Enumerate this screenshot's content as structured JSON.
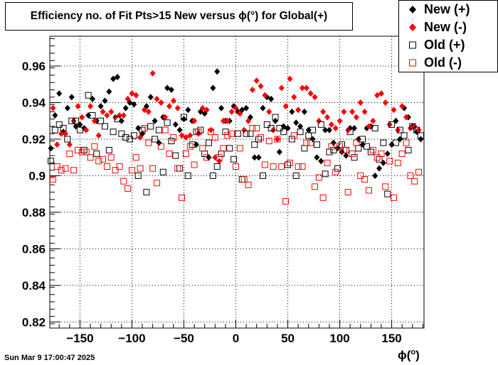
{
  "title": {
    "text": "Efficiency no. of Fit Pts>15 New versus ϕ(°) for Global(+)"
  },
  "timestamp": "Sun Mar  9 17:00:47 2025",
  "xaxis_title": {
    "phi": "ϕ(",
    "degree": "o",
    "close": ")"
  },
  "legend": [
    {
      "label": "New (+)",
      "color": "#000000",
      "marker": "filled-diamond"
    },
    {
      "label": "New (-)",
      "color": "#ff0000",
      "marker": "filled-diamond"
    },
    {
      "label": "Old (+)",
      "color": "#000000",
      "marker": "open-square"
    },
    {
      "label": "Old (-)",
      "color": "#ff0000",
      "marker": "open-square"
    }
  ],
  "chart_data": {
    "type": "scatter",
    "title": "Efficiency no. of Fit Pts>15 New versus ϕ(°) for Global(+)",
    "xlabel": "ϕ(°)",
    "ylabel": "",
    "xlim": [
      -180,
      180
    ],
    "ylim": [
      0.815,
      0.97
    ],
    "grid": true,
    "legend_position": "top-right",
    "xticks": [
      -150,
      -100,
      -50,
      0,
      50,
      100,
      150
    ],
    "yticks": [
      0.82,
      0.84,
      0.86,
      0.88,
      0.9,
      0.92,
      0.94,
      0.96
    ],
    "series": [
      {
        "name": "New (+)",
        "color": "#000000",
        "marker": "filled-diamond",
        "x": [
          -178,
          -174,
          -170,
          -166,
          -162,
          -158,
          -154,
          -150,
          -146,
          -142,
          -138,
          -134,
          -130,
          -126,
          -122,
          -118,
          -114,
          -110,
          -106,
          -102,
          -98,
          -94,
          -90,
          -86,
          -82,
          -78,
          -74,
          -70,
          -66,
          -62,
          -58,
          -54,
          -50,
          -46,
          -42,
          -38,
          -34,
          -30,
          -26,
          -22,
          -18,
          -14,
          -10,
          -6,
          -2,
          2,
          6,
          10,
          14,
          18,
          22,
          26,
          30,
          34,
          38,
          42,
          46,
          50,
          54,
          58,
          62,
          66,
          70,
          74,
          78,
          82,
          86,
          90,
          94,
          98,
          102,
          106,
          110,
          114,
          118,
          122,
          126,
          130,
          134,
          138,
          142,
          146,
          150,
          154,
          158,
          162,
          166,
          170,
          174,
          178
        ],
        "y": [
          0.915,
          0.933,
          0.945,
          0.924,
          0.937,
          0.943,
          0.927,
          0.928,
          0.926,
          0.933,
          0.942,
          0.93,
          0.938,
          0.941,
          0.946,
          0.953,
          0.954,
          0.93,
          0.937,
          0.94,
          0.939,
          0.926,
          0.923,
          0.938,
          0.943,
          0.93,
          0.918,
          0.932,
          0.948,
          0.947,
          0.928,
          0.925,
          0.931,
          0.936,
          0.93,
          0.917,
          0.935,
          0.934,
          0.91,
          0.948,
          0.957,
          0.937,
          0.93,
          0.93,
          0.938,
          0.935,
          0.936,
          0.937,
          0.932,
          0.91,
          0.91,
          0.937,
          0.943,
          0.942,
          0.93,
          0.913,
          0.927,
          0.926,
          0.935,
          0.929,
          0.927,
          0.935,
          0.925,
          0.92,
          0.91,
          0.908,
          0.925,
          0.925,
          0.918,
          0.915,
          0.913,
          0.911,
          0.926,
          0.926,
          0.92,
          0.917,
          0.926,
          0.927,
          0.9,
          0.904,
          0.907,
          0.912,
          0.917,
          0.93,
          0.92,
          0.937,
          0.932,
          0.927,
          0.924,
          0.92
        ]
      },
      {
        "name": "New (-)",
        "color": "#ff0000",
        "marker": "filled-diamond",
        "x": [
          -176,
          -172,
          -168,
          -164,
          -160,
          -156,
          -152,
          -148,
          -144,
          -140,
          -136,
          -132,
          -128,
          -124,
          -120,
          -116,
          -112,
          -108,
          -104,
          -100,
          -96,
          -92,
          -88,
          -84,
          -80,
          -76,
          -72,
          -68,
          -64,
          -60,
          -56,
          -52,
          -48,
          -44,
          -40,
          -36,
          -32,
          -28,
          -24,
          -20,
          -16,
          -12,
          -8,
          -4,
          0,
          4,
          8,
          12,
          16,
          20,
          24,
          28,
          32,
          36,
          40,
          44,
          48,
          52,
          56,
          60,
          64,
          68,
          72,
          76,
          80,
          84,
          88,
          92,
          96,
          100,
          104,
          108,
          112,
          116,
          120,
          124,
          128,
          132,
          136,
          140,
          144,
          148,
          152,
          156,
          160,
          164,
          168,
          172,
          176
        ],
        "y": [
          0.937,
          0.917,
          0.923,
          0.923,
          0.917,
          0.93,
          0.938,
          0.932,
          0.925,
          0.938,
          0.93,
          0.922,
          0.935,
          0.933,
          0.935,
          0.932,
          0.933,
          0.933,
          0.942,
          0.945,
          0.944,
          0.921,
          0.936,
          0.935,
          0.956,
          0.942,
          0.94,
          0.932,
          0.938,
          0.941,
          0.937,
          0.922,
          0.921,
          0.922,
          0.93,
          0.923,
          0.937,
          0.936,
          0.925,
          0.91,
          0.908,
          0.93,
          0.93,
          0.935,
          0.937,
          0.934,
          0.925,
          0.93,
          0.947,
          0.952,
          0.949,
          0.944,
          0.935,
          0.925,
          0.92,
          0.948,
          0.938,
          0.953,
          0.943,
          0.936,
          0.948,
          0.948,
          0.945,
          0.943,
          0.93,
          0.935,
          0.932,
          0.928,
          0.926,
          0.93,
          0.935,
          0.925,
          0.935,
          0.932,
          0.94,
          0.935,
          0.927,
          0.93,
          0.944,
          0.945,
          0.94,
          0.928,
          0.936,
          0.925,
          0.938,
          0.932,
          0.926,
          0.927,
          0.925
        ]
      },
      {
        "name": "Old (+)",
        "color": "#000000",
        "marker": "open-square",
        "x": [
          -178,
          -174,
          -170,
          -166,
          -162,
          -158,
          -154,
          -150,
          -146,
          -142,
          -138,
          -134,
          -130,
          -126,
          -122,
          -118,
          -114,
          -110,
          -106,
          -102,
          -98,
          -94,
          -90,
          -86,
          -82,
          -78,
          -74,
          -70,
          -66,
          -62,
          -58,
          -54,
          -50,
          -46,
          -42,
          -38,
          -34,
          -30,
          -26,
          -22,
          -18,
          -14,
          -10,
          -6,
          -2,
          2,
          6,
          10,
          14,
          18,
          22,
          26,
          30,
          34,
          38,
          42,
          46,
          50,
          54,
          58,
          62,
          66,
          70,
          74,
          78,
          82,
          86,
          90,
          94,
          98,
          102,
          106,
          110,
          114,
          118,
          122,
          126,
          130,
          134,
          138,
          142,
          146,
          150,
          154,
          158,
          162,
          166,
          170,
          174,
          178
        ],
        "y": [
          0.908,
          0.925,
          0.928,
          0.926,
          0.92,
          0.93,
          0.93,
          0.925,
          0.914,
          0.944,
          0.933,
          0.912,
          0.93,
          0.927,
          0.914,
          0.924,
          0.931,
          0.923,
          0.921,
          0.92,
          0.922,
          0.9,
          0.925,
          0.891,
          0.927,
          0.92,
          0.925,
          0.902,
          0.929,
          0.919,
          0.911,
          0.904,
          0.932,
          0.9,
          0.917,
          0.924,
          0.925,
          0.912,
          0.918,
          0.9,
          0.905,
          0.912,
          0.924,
          0.915,
          0.909,
          0.923,
          0.898,
          0.923,
          0.923,
          0.917,
          0.92,
          0.9,
          0.928,
          0.926,
          0.932,
          0.926,
          0.924,
          0.906,
          0.92,
          0.9,
          0.924,
          0.915,
          0.922,
          0.925,
          0.917,
          0.928,
          0.901,
          0.913,
          0.914,
          0.904,
          0.917,
          0.914,
          0.924,
          0.91,
          0.915,
          0.92,
          0.916,
          0.913,
          0.926,
          0.909,
          0.918,
          0.89,
          0.928,
          0.918,
          0.925,
          0.922,
          0.914,
          0.927,
          0.925,
          0.922
        ]
      },
      {
        "name": "Old (-)",
        "color": "#ff0000",
        "marker": "open-square",
        "x": [
          -176,
          -172,
          -168,
          -164,
          -160,
          -156,
          -152,
          -148,
          -144,
          -140,
          -136,
          -132,
          -128,
          -124,
          -120,
          -116,
          -112,
          -108,
          -104,
          -100,
          -96,
          -92,
          -88,
          -84,
          -80,
          -76,
          -72,
          -68,
          -64,
          -60,
          -56,
          -52,
          -48,
          -44,
          -40,
          -36,
          -32,
          -28,
          -24,
          -20,
          -16,
          -12,
          -8,
          -4,
          0,
          4,
          8,
          12,
          16,
          20,
          24,
          28,
          32,
          36,
          40,
          44,
          48,
          52,
          56,
          60,
          64,
          68,
          72,
          76,
          80,
          84,
          88,
          92,
          96,
          100,
          104,
          108,
          112,
          116,
          120,
          124,
          128,
          132,
          136,
          140,
          144,
          148,
          152,
          156,
          160,
          164,
          168,
          172,
          176
        ],
        "y": [
          0.898,
          0.905,
          0.903,
          0.904,
          0.912,
          0.903,
          0.914,
          0.913,
          0.913,
          0.91,
          0.916,
          0.908,
          0.909,
          0.905,
          0.91,
          0.903,
          0.905,
          0.897,
          0.893,
          0.903,
          0.91,
          0.904,
          0.926,
          0.918,
          0.904,
          0.896,
          0.916,
          0.925,
          0.912,
          0.921,
          0.904,
          0.888,
          0.912,
          0.916,
          0.906,
          0.924,
          0.915,
          0.91,
          0.924,
          0.921,
          0.91,
          0.915,
          0.922,
          0.923,
          0.905,
          0.915,
          0.898,
          0.895,
          0.926,
          0.926,
          0.921,
          0.906,
          0.919,
          0.905,
          0.92,
          0.905,
          0.886,
          0.907,
          0.922,
          0.905,
          0.905,
          0.918,
          0.918,
          0.894,
          0.899,
          0.888,
          0.907,
          0.916,
          0.902,
          0.916,
          0.914,
          0.891,
          0.912,
          0.918,
          0.9,
          0.898,
          0.892,
          0.914,
          0.91,
          0.912,
          0.894,
          0.908,
          0.888,
          0.907,
          0.912,
          0.918,
          0.9,
          0.897,
          0.902
        ]
      }
    ]
  }
}
